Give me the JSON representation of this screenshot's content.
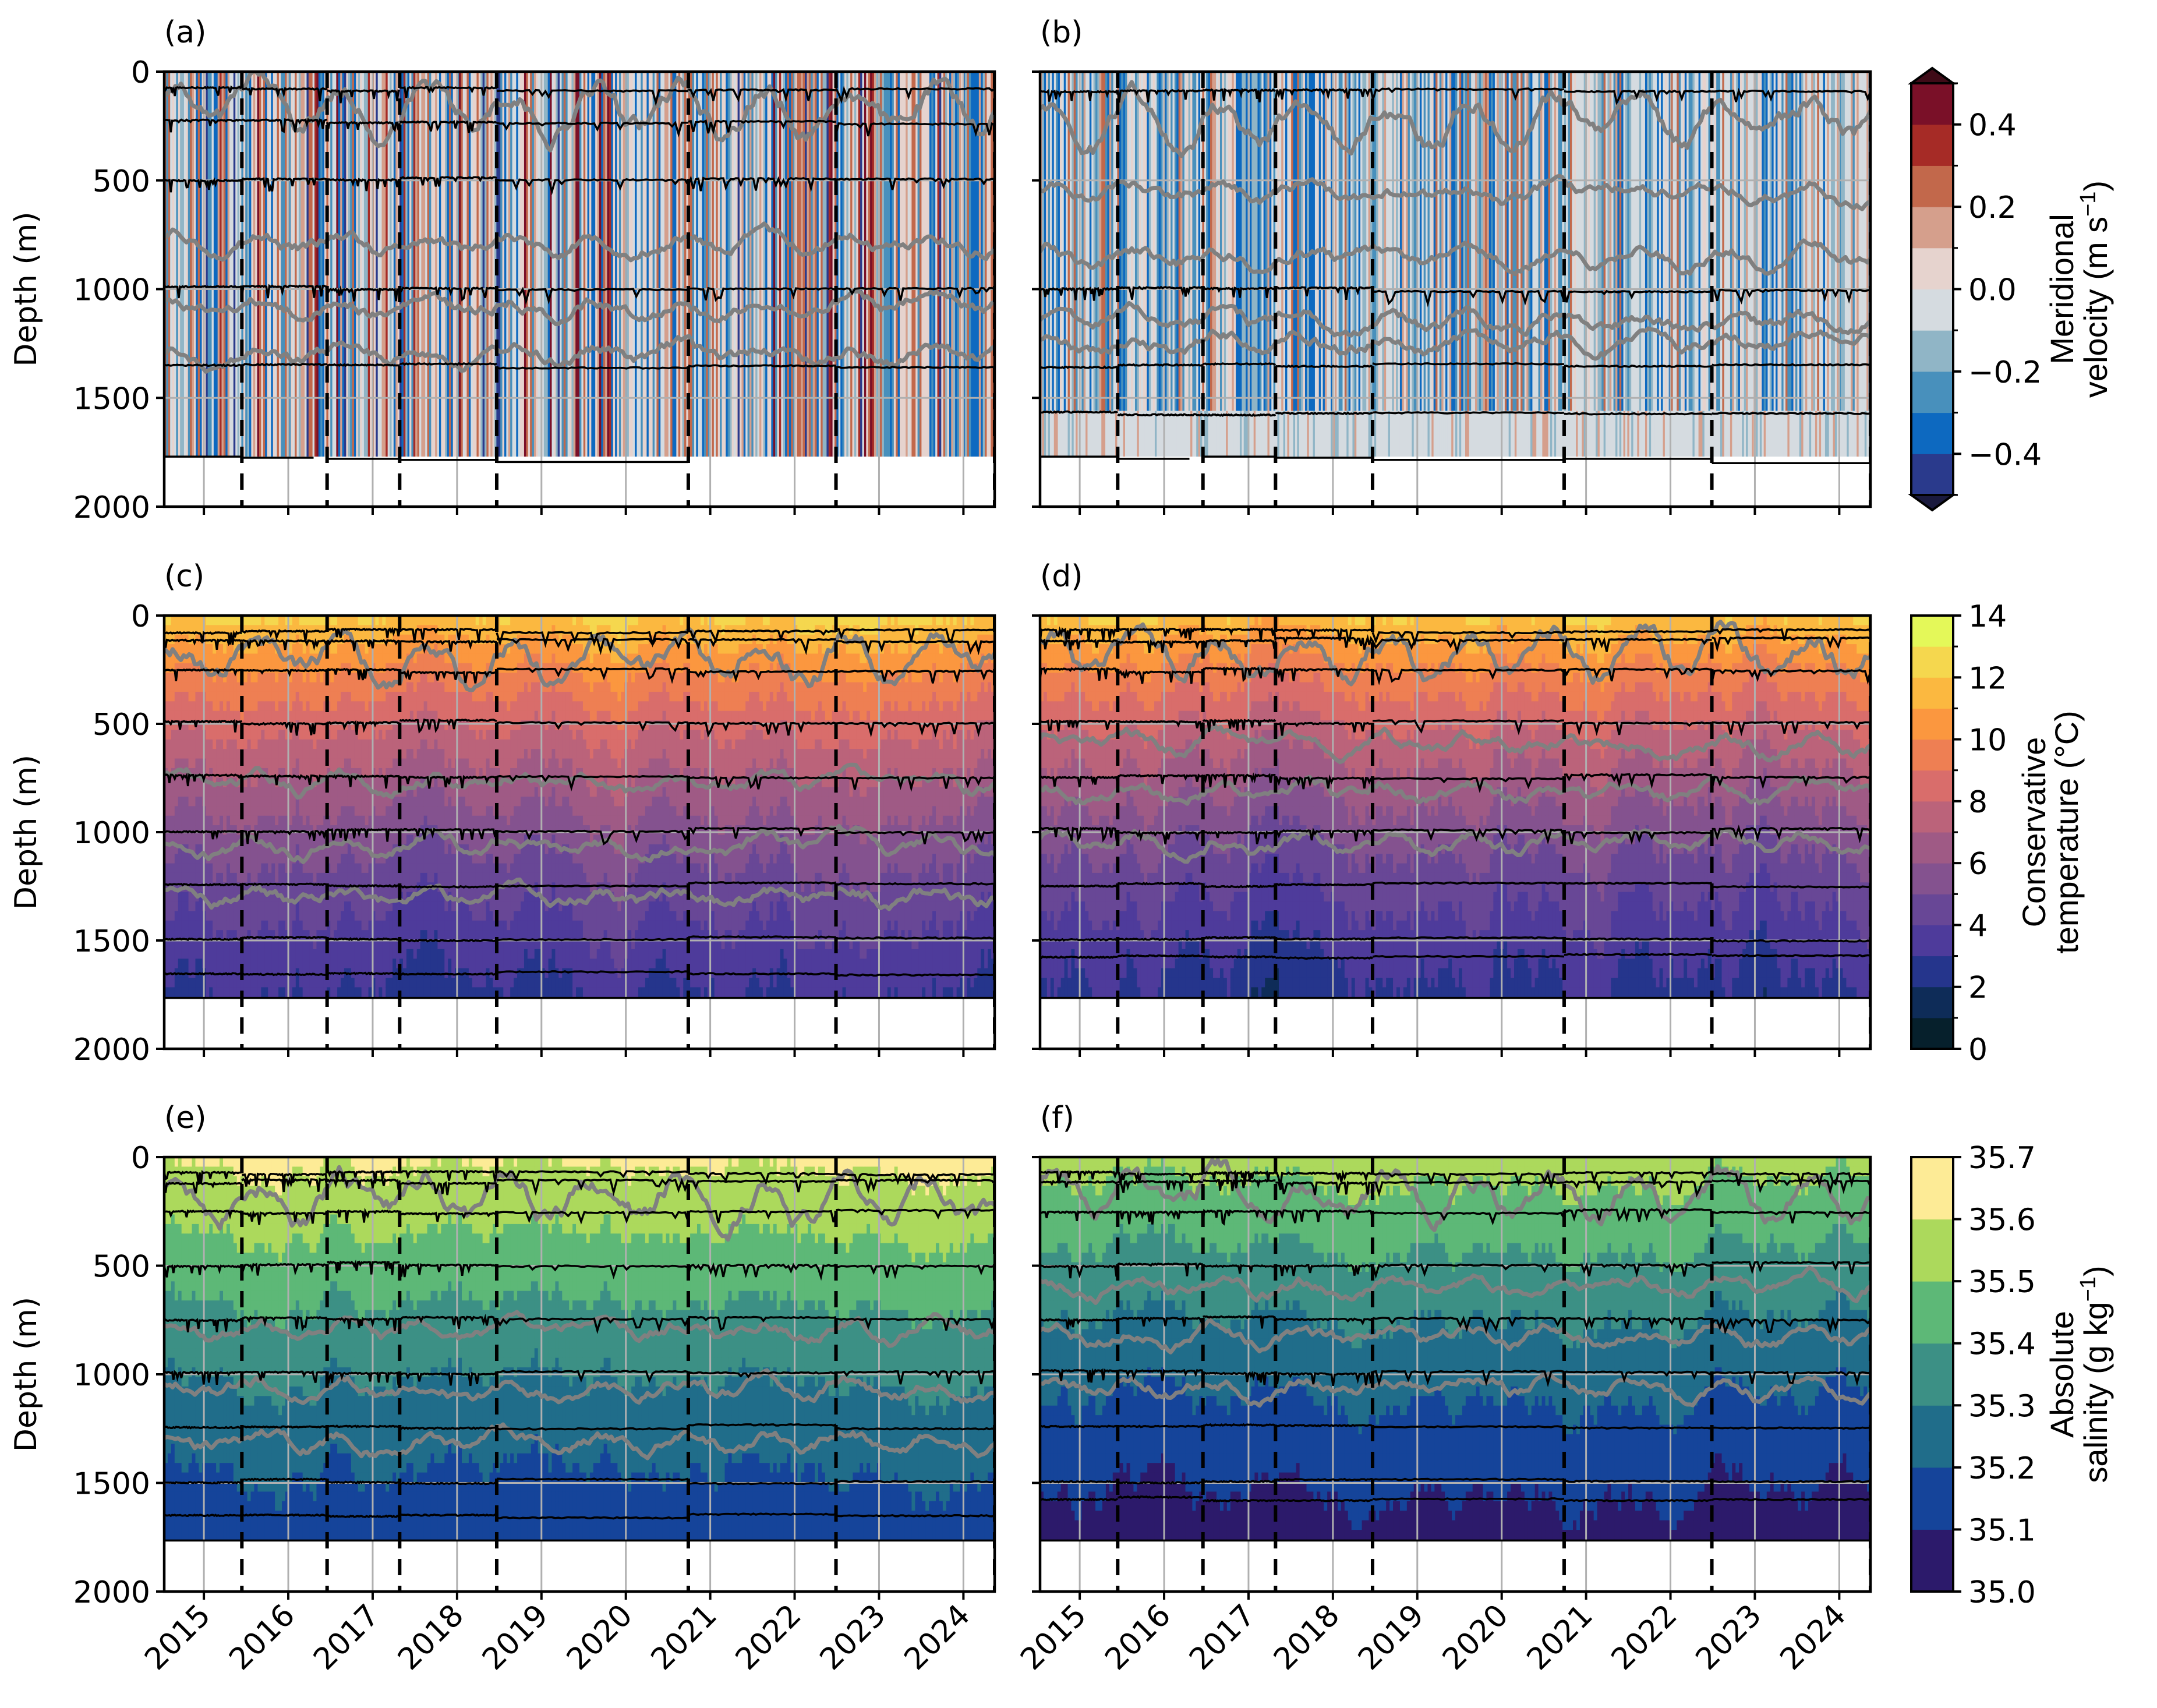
{
  "chart_data": {
    "type": "heatmap",
    "description": "Six-panel depth-time sections of mooring data (left column and right column), with deployment boundaries, instrument-depth lines and isopycnal-like contours",
    "x_axis": {
      "label": "",
      "ticks": [
        "2015",
        "2016",
        "2017",
        "2018",
        "2019",
        "2020",
        "2021",
        "2022",
        "2023",
        "2024"
      ],
      "tick_values": [
        2015,
        2016,
        2017,
        2018,
        2019,
        2020,
        2021,
        2022,
        2023,
        2024
      ],
      "range": [
        2014.53,
        2024.37
      ],
      "tick_rotation_deg": 45,
      "grid": true
    },
    "y_axis": {
      "label": "Depth (m)",
      "ticks": [
        "0",
        "500",
        "1000",
        "1500",
        "2000"
      ],
      "tick_values": [
        0,
        500,
        1000,
        1500,
        2000
      ],
      "range": [
        2000,
        0
      ],
      "inverted": true
    },
    "deployment_boundaries_years": [
      2015.45,
      2016.46,
      2017.32,
      2018.47,
      2020.74,
      2022.49,
      2024.37
    ],
    "panels": [
      {
        "id": "a",
        "label": "(a)",
        "variable": "velocity",
        "column": "left",
        "data_bottom_m": 1770,
        "instrument_depths_m": [
          80,
          230,
          490,
          990,
          1350,
          1770
        ],
        "contour_mean_depths_m": [
          170,
          780,
          1080,
          1300
        ],
        "seafloor_segments": [
          {
            "x0": 2014.53,
            "x1": 2015.45,
            "depth": 1770
          },
          {
            "x0": 2015.45,
            "x1": 2016.3,
            "depth": 1775
          },
          {
            "x0": 2016.46,
            "x1": 2017.32,
            "depth": 1780
          },
          {
            "x0": 2017.32,
            "x1": 2018.47,
            "depth": 1785
          },
          {
            "x0": 2018.47,
            "x1": 2020.74,
            "depth": 1795
          }
        ]
      },
      {
        "id": "b",
        "label": "(b)",
        "variable": "velocity",
        "column": "right",
        "data_bottom_m": 1770,
        "instrument_depths_m": [
          80,
          1000,
          1350,
          1570,
          1770
        ],
        "contour_mean_depths_m": [
          230,
          560,
          850,
          1150,
          1250
        ],
        "seafloor_segments": [
          {
            "x0": 2014.53,
            "x1": 2015.45,
            "depth": 1770
          },
          {
            "x0": 2015.45,
            "x1": 2016.3,
            "depth": 1780
          },
          {
            "x0": 2016.46,
            "x1": 2017.32,
            "depth": 1770
          },
          {
            "x0": 2017.32,
            "x1": 2018.47,
            "depth": 1775
          },
          {
            "x0": 2018.47,
            "x1": 2020.74,
            "depth": 1785
          },
          {
            "x0": 2020.74,
            "x1": 2022.49,
            "depth": 1780
          },
          {
            "x0": 2022.49,
            "x1": 2024.37,
            "depth": 1800
          }
        ]
      },
      {
        "id": "c",
        "label": "(c)",
        "variable": "temperature",
        "column": "left",
        "data_bottom_m": 1760,
        "instrument_depths_m": [
          70,
          110,
          250,
          490,
          740,
          990,
          1240,
          1490,
          1650
        ],
        "contour_mean_depths_m": [
          200,
          770,
          1060,
          1300
        ],
        "layers_top_to_bottom_value": [
          12.5,
          11.5,
          10.5,
          9.5,
          8.5,
          7.5,
          6.5,
          5.5,
          4.5,
          3.5
        ]
      },
      {
        "id": "d",
        "label": "(d)",
        "variable": "temperature",
        "column": "right",
        "data_bottom_m": 1760,
        "instrument_depths_m": [
          70,
          110,
          250,
          490,
          740,
          990,
          1240,
          1490,
          1570,
          1770
        ],
        "contour_mean_depths_m": [
          180,
          590,
          820,
          1050
        ]
      },
      {
        "id": "e",
        "label": "(e)",
        "variable": "salinity",
        "column": "left",
        "data_bottom_m": 1760,
        "instrument_depths_m": [
          70,
          110,
          250,
          490,
          740,
          990,
          1240,
          1490,
          1650
        ],
        "contour_mean_depths_m": [
          200,
          790,
          1070,
          1310
        ]
      },
      {
        "id": "f",
        "label": "(f)",
        "variable": "salinity",
        "column": "right",
        "data_bottom_m": 1760,
        "instrument_depths_m": [
          70,
          110,
          250,
          490,
          740,
          990,
          1240,
          1490,
          1570,
          1770
        ],
        "contour_mean_depths_m": [
          180,
          600,
          830,
          1060
        ]
      }
    ],
    "colorbars": [
      {
        "id": "velocity",
        "label_line1": "Meridional",
        "label_line2": "velocity (m s",
        "label_sup": "−1",
        "label_close": ")",
        "vmin": -0.5,
        "vmax": 0.5,
        "boundaries": [
          -0.5,
          -0.4,
          -0.3,
          -0.2,
          -0.1,
          0.0,
          0.1,
          0.2,
          0.3,
          0.4,
          0.5
        ],
        "ticks": [
          "0.4",
          "0.2",
          "0.0",
          "−0.2",
          "−0.4"
        ],
        "tick_values": [
          0.4,
          0.2,
          0.0,
          -0.2,
          -0.4
        ],
        "colors_bottom_to_top": [
          "#2a3a8c",
          "#0d69c0",
          "#4890bc",
          "#90b5c6",
          "#d5dbe0",
          "#e6d3ce",
          "#d59f8c",
          "#c2684b",
          "#a62b26",
          "#7a1028"
        ],
        "extend_low_color": "#1a1a3e",
        "extend_high_color": "#3f0b17",
        "extend": "both"
      },
      {
        "id": "temperature",
        "label_line1": "Conservative",
        "label_line2": "temperature (°C)",
        "vmin": 0,
        "vmax": 14,
        "boundaries": [
          0,
          1,
          2,
          3,
          4,
          5,
          6,
          7,
          8,
          9,
          10,
          11,
          12,
          13,
          14
        ],
        "ticks": [
          "14",
          "12",
          "10",
          "8",
          "6",
          "4",
          "2",
          "0"
        ],
        "tick_values": [
          14,
          12,
          10,
          8,
          6,
          4,
          2,
          0
        ],
        "colors_bottom_to_top": [
          "#06202c",
          "#0e2c58",
          "#25358c",
          "#4e3b9b",
          "#684796",
          "#84528f",
          "#9f5a85",
          "#bb637a",
          "#d96d6b",
          "#ee7f53",
          "#fb973f",
          "#fbb840",
          "#f5d74e",
          "#e4f859"
        ],
        "extend": "neither"
      },
      {
        "id": "salinity",
        "label_line1": "Absolute",
        "label_line2": "salinity (g kg",
        "label_sup": "−1",
        "label_close": ")",
        "vmin": 35.0,
        "vmax": 35.7,
        "boundaries": [
          35.0,
          35.1,
          35.2,
          35.3,
          35.4,
          35.5,
          35.6,
          35.7
        ],
        "ticks": [
          "35.7",
          "35.6",
          "35.5",
          "35.4",
          "35.3",
          "35.2",
          "35.1",
          "35.0"
        ],
        "tick_values": [
          35.7,
          35.6,
          35.5,
          35.4,
          35.3,
          35.2,
          35.1,
          35.0
        ],
        "colors_bottom_to_top": [
          "#2c1a6b",
          "#15449a",
          "#206d8a",
          "#3c9085",
          "#5db877",
          "#acd95c",
          "#fdeb96"
        ],
        "extend": "neither"
      }
    ],
    "overlay_colors": {
      "instrument_line": "#000000",
      "contour_line": "#808080",
      "grid": "#b0b0b0",
      "deployment_boundary": "#000000",
      "gap_fill": "#808080"
    }
  }
}
